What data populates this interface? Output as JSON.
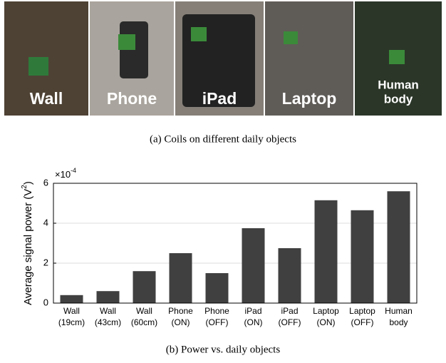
{
  "figure": {
    "photo_labels": [
      [
        "Wall"
      ],
      [
        "Phone"
      ],
      [
        "iPad"
      ],
      [
        "Laptop"
      ],
      [
        "Human",
        "body"
      ]
    ],
    "caption_a": "(a)  Coils on different daily objects",
    "caption_b": "(b)  Power vs. daily objects"
  },
  "chart_data": {
    "type": "bar",
    "ylabel": {
      "text": "Average signal power (V",
      "sup": "2",
      "end": ")"
    },
    "multiplier": {
      "base": "×10",
      "exp": "-4"
    },
    "categories": [
      [
        "Wall",
        "(19cm)"
      ],
      [
        "Wall",
        "(43cm)"
      ],
      [
        "Wall",
        "(60cm)"
      ],
      [
        "Phone",
        "(ON)"
      ],
      [
        "Phone",
        "(OFF)"
      ],
      [
        "iPad",
        "(ON)"
      ],
      [
        "iPad",
        "(OFF)"
      ],
      [
        "Laptop",
        "(ON)"
      ],
      [
        "Laptop",
        "(OFF)"
      ],
      [
        "Human",
        "body"
      ]
    ],
    "values": [
      0.4,
      0.6,
      1.6,
      2.5,
      1.5,
      3.75,
      2.75,
      5.15,
      4.65,
      5.6
    ],
    "color": "#404040",
    "ylim": [
      0,
      6
    ],
    "yticks": [
      0,
      2,
      4,
      6
    ],
    "grid": true
  }
}
